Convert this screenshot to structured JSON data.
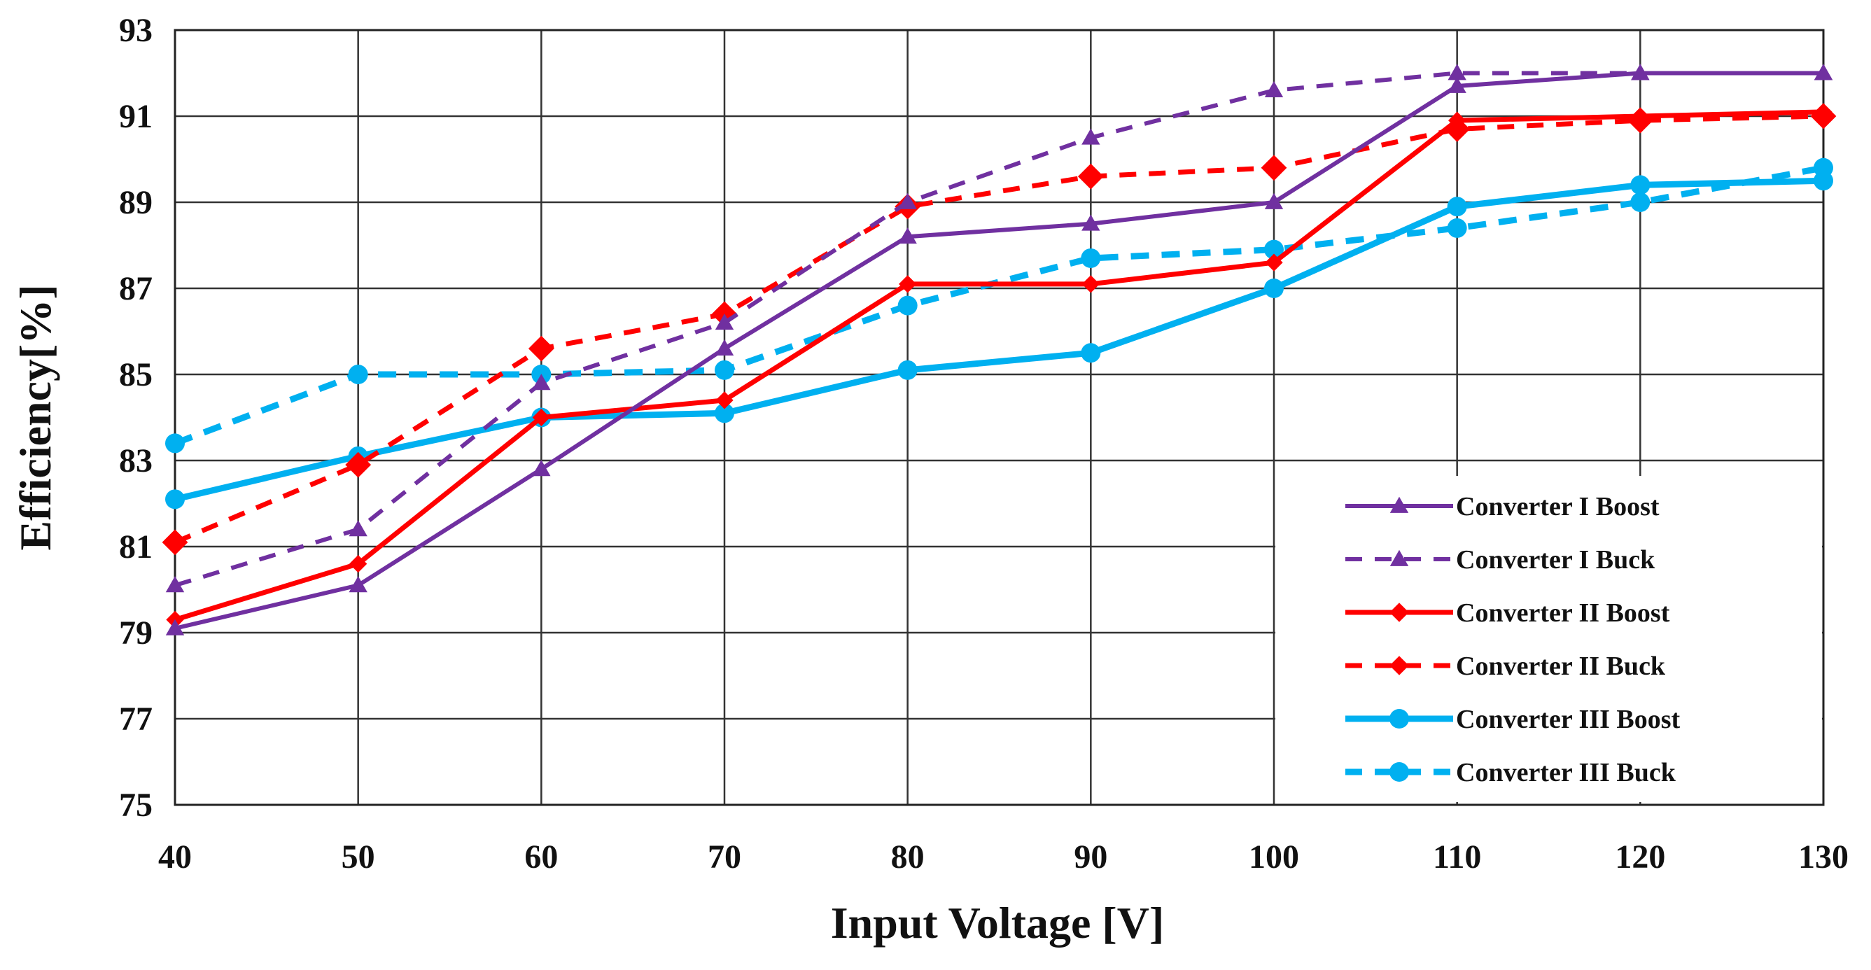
{
  "chart_data": {
    "type": "line",
    "title": "",
    "xlabel": "Input Voltage [V]",
    "ylabel": "Efficiency[%]",
    "x": [
      40,
      50,
      60,
      70,
      80,
      90,
      100,
      110,
      120,
      130
    ],
    "x_tick_labels": [
      "40",
      "50",
      "60",
      "70",
      "80",
      "90",
      "100",
      "110",
      "120",
      "130"
    ],
    "y_tick_labels": [
      "75",
      "77",
      "79",
      "81",
      "83",
      "85",
      "87",
      "89",
      "91",
      "93"
    ],
    "xlim": [
      40,
      130
    ],
    "ylim": [
      75,
      93
    ],
    "grid": true,
    "legend_position": "bottom-right",
    "series": [
      {
        "name": "Converter I Boost",
        "color": "#7030A0",
        "dash": "solid",
        "marker": "triangle",
        "values": [
          79.1,
          80.1,
          82.8,
          85.6,
          88.2,
          88.5,
          89.0,
          91.7,
          92.0,
          92.0
        ]
      },
      {
        "name": "Converter I Buck",
        "color": "#7030A0",
        "dash": "dashed",
        "marker": "triangle",
        "values": [
          80.1,
          81.4,
          84.8,
          86.2,
          89.0,
          90.5,
          91.6,
          92.0,
          92.0,
          92.0
        ]
      },
      {
        "name": "Converter II Boost",
        "color": "#FF0000",
        "dash": "solid",
        "marker": "diamond",
        "values": [
          79.3,
          80.6,
          84.0,
          84.4,
          87.1,
          87.1,
          87.6,
          90.9,
          91.0,
          91.1
        ]
      },
      {
        "name": "Converter II Buck",
        "color": "#FF0000",
        "dash": "dashed",
        "marker": "diamond",
        "values": [
          81.1,
          82.9,
          85.6,
          86.4,
          88.9,
          89.6,
          89.8,
          90.7,
          90.9,
          91.0
        ]
      },
      {
        "name": "Converter III Boost",
        "color": "#00B0F0",
        "dash": "solid",
        "marker": "circle",
        "values": [
          82.1,
          83.1,
          84.0,
          84.1,
          85.1,
          85.5,
          87.0,
          88.9,
          89.4,
          89.5
        ]
      },
      {
        "name": "Converter III Buck",
        "color": "#00B0F0",
        "dash": "dashed",
        "marker": "circle",
        "values": [
          83.4,
          85.0,
          85.0,
          85.1,
          86.6,
          87.7,
          87.9,
          88.4,
          89.0,
          89.8
        ]
      }
    ]
  }
}
